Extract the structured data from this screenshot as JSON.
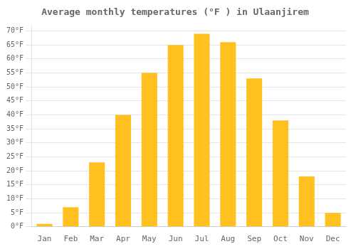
{
  "chart_data": {
    "type": "bar",
    "title": "Average monthly temperatures (°F ) in Ulaanjirem",
    "categories": [
      "Jan",
      "Feb",
      "Mar",
      "Apr",
      "May",
      "Jun",
      "Jul",
      "Aug",
      "Sep",
      "Oct",
      "Nov",
      "Dec"
    ],
    "values": [
      1,
      7,
      23,
      40,
      55,
      65,
      69,
      66,
      53,
      38,
      18,
      5
    ],
    "color": "#FFC020",
    "ylim": [
      0,
      72
    ],
    "yticks": [
      {
        "value": 0,
        "label": "0°F"
      },
      {
        "value": 5,
        "label": "5°F"
      },
      {
        "value": 10,
        "label": "10°F"
      },
      {
        "value": 15,
        "label": "15°F"
      },
      {
        "value": 20,
        "label": "20°F"
      },
      {
        "value": 25,
        "label": "25°F"
      },
      {
        "value": 30,
        "label": "30°F"
      },
      {
        "value": 35,
        "label": "35°F"
      },
      {
        "value": 40,
        "label": "40°F"
      },
      {
        "value": 45,
        "label": "45°F"
      },
      {
        "value": 50,
        "label": "50°F"
      },
      {
        "value": 55,
        "label": "55°F"
      },
      {
        "value": 60,
        "label": "60°F"
      },
      {
        "value": 65,
        "label": "65°F"
      },
      {
        "value": 70,
        "label": "70°F"
      }
    ],
    "grid": true
  }
}
